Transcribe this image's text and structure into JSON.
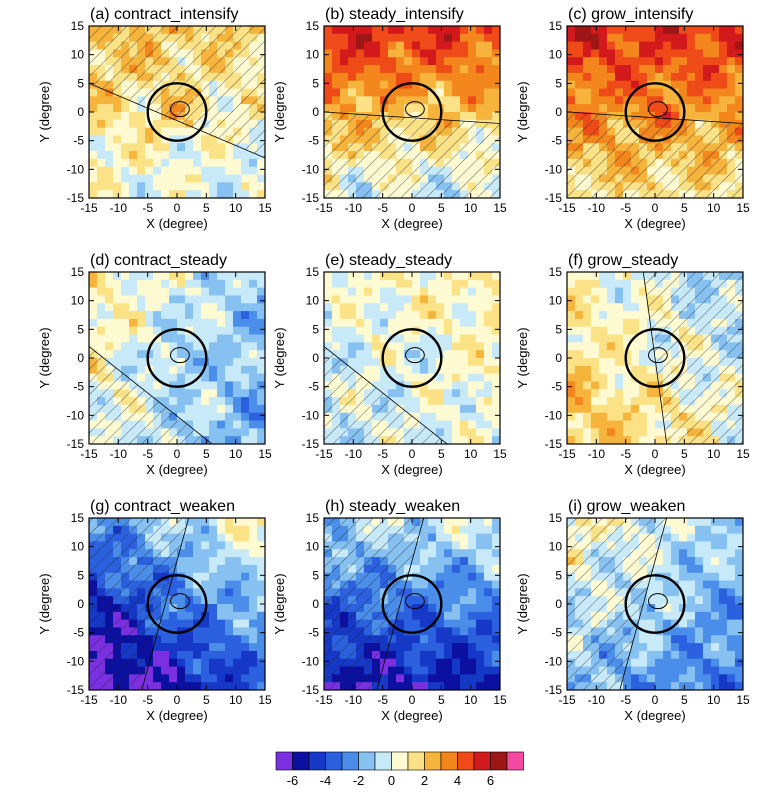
{
  "chart_data": {
    "type": "heatmap",
    "panels": [
      {
        "id": "a",
        "title": "(a) contract_intensify",
        "base": 1,
        "bias": [
          0.2,
          0.5
        ],
        "hatch": [
          1,
          1
        ],
        "center": 2
      },
      {
        "id": "b",
        "title": "(b) steady_intensify",
        "base": 2.4,
        "bias": [
          0.2,
          1.4
        ],
        "hatch": [
          0,
          -1
        ],
        "center": -2
      },
      {
        "id": "c",
        "title": "(c) grow_intensify",
        "base": 3.2,
        "bias": [
          0.1,
          1.0
        ],
        "hatch": [
          0,
          -1
        ],
        "center": 1
      },
      {
        "id": "d",
        "title": "(d) contract_steady",
        "base": -0.5,
        "bias": [
          0.6,
          0.2
        ],
        "hatch": [
          -1,
          -1
        ],
        "center": -2
      },
      {
        "id": "e",
        "title": "(e) steady_steady",
        "base": 0.2,
        "bias": [
          -0.2,
          0.2
        ],
        "hatch": [
          -1,
          -1
        ],
        "center": -1
      },
      {
        "id": "f",
        "title": "(f) grow_steady",
        "base": 0.6,
        "bias": [
          0.5,
          -0.4
        ],
        "hatch": [
          1,
          -1
        ],
        "center": -1
      },
      {
        "id": "g",
        "title": "(g) contract_weaken",
        "base": -3.2,
        "bias": [
          -0.9,
          1.2
        ],
        "hatch": [
          -1,
          1
        ],
        "center": 1
      },
      {
        "id": "h",
        "title": "(h) steady_weaken",
        "base": -3.0,
        "bias": [
          -0.2,
          1.3
        ],
        "hatch": [
          -1,
          1
        ],
        "center": 0
      },
      {
        "id": "i",
        "title": "(i) grow_weaken",
        "base": -1.2,
        "bias": [
          0.5,
          0.6
        ],
        "hatch": [
          -1,
          1
        ],
        "center": 2
      }
    ],
    "xlabel": "X (degree)",
    "ylabel": "Y (degree)",
    "xlim": [
      -15,
      15
    ],
    "ylim": [
      -15,
      15
    ],
    "ticks": [
      -15,
      -10,
      -5,
      0,
      5,
      10,
      15
    ],
    "tick_labels": [
      "-15",
      "-10",
      "-5",
      "0",
      "5",
      "10",
      "15"
    ],
    "circle_radius_deg": 5,
    "colorbar": {
      "levels": [
        -7,
        -6,
        -5,
        -4,
        -3,
        -2,
        -1,
        0,
        1,
        2,
        3,
        4,
        5,
        6,
        7
      ],
      "labels": [
        "-6",
        "-4",
        "-2",
        "0",
        "2",
        "4",
        "6"
      ],
      "colors": [
        "#7a30e0",
        "#0b10a0",
        "#1638c6",
        "#2b61de",
        "#4a8ee9",
        "#86c1f1",
        "#c7e9f8",
        "#fefbd2",
        "#fbe287",
        "#f7b43d",
        "#f3861c",
        "#ee4b18",
        "#d21a1c",
        "#9e1616",
        "#f24aa0"
      ]
    }
  }
}
